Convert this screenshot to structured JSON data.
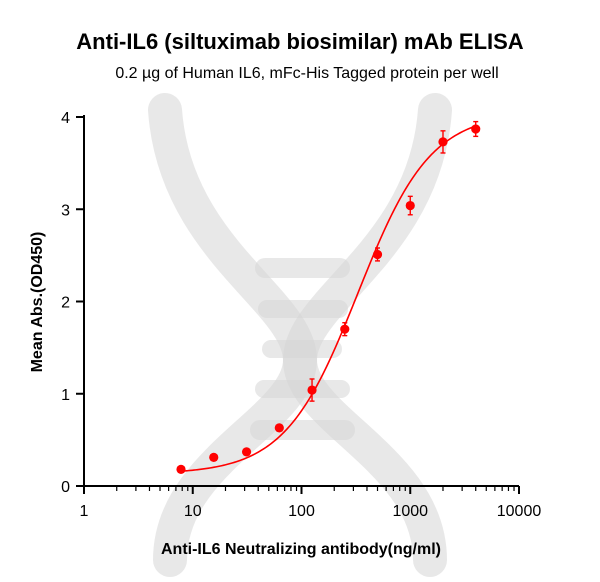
{
  "chart_data": {
    "type": "scatter",
    "title": "Anti-IL6 (siltuximab biosimilar) mAb ELISA",
    "subtitle": "0.2 µg of Human IL6, mFc-His Tagged protein per well",
    "xlabel": "Anti-IL6 Neutralizing antibody(ng/ml)",
    "ylabel": "Mean Abs.(OD450)",
    "x_scale": "log10",
    "xlim": [
      1,
      10000
    ],
    "ylim": [
      0,
      4
    ],
    "x_ticks": [
      "1",
      "10",
      "100",
      "1000",
      "10000"
    ],
    "y_ticks": [
      "0",
      "1",
      "2",
      "3",
      "4"
    ],
    "grid": false,
    "legend": "none",
    "color": "#ff0000",
    "series": [
      {
        "x": [
          7.8,
          15.6,
          31.25,
          62.5,
          125,
          250,
          500,
          1000,
          2000,
          4000
        ],
        "y": [
          0.18,
          0.31,
          0.37,
          0.63,
          1.04,
          1.7,
          2.51,
          3.04,
          3.73,
          3.87
        ],
        "error": [
          0.02,
          0.03,
          0.03,
          0.03,
          0.12,
          0.07,
          0.07,
          0.1,
          0.12,
          0.08
        ]
      }
    ],
    "fit_curve": {
      "type": "4PL",
      "bottom": 0.13,
      "top": 4.05,
      "ec50": 330,
      "hill": 1.3
    }
  }
}
